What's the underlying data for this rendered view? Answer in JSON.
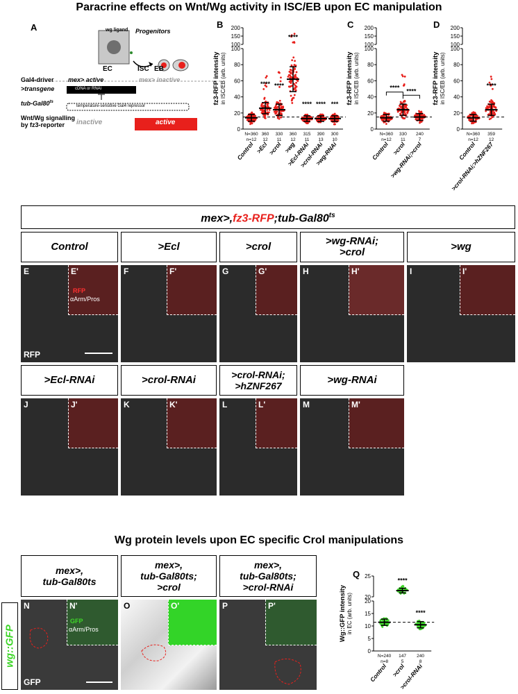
{
  "title_top": "Paracrine effects on Wnt/Wg activity in ISC/EB upon EC manipulation",
  "title_mid": "Wg protein levels upon EC specific Crol manipulations",
  "panel_letters": {
    "A": "A",
    "B": "B",
    "C": "C",
    "D": "D",
    "Q": "Q"
  },
  "schematic": {
    "wg_ligand": "wg ligand",
    "progenitors": "Progenitors",
    "ec": "EC",
    "isc": "ISC",
    "eb": "EB",
    "gal4_driver": "Gal4-driver",
    "mex_active": "mex> active",
    "mex_inactive": "mex> inactive",
    "transgene": ">transgene",
    "cdna_rnai": "cDNA or RNAi",
    "tub_gal80": "tub-Gal80",
    "tub_gal80_sup": "ts",
    "repressor": "temperature-sensitive Gal4 repressor",
    "wnt_line1": "Wnt/Wg signalling",
    "wnt_line2": "by fz3-reporter",
    "inactive": "inactive",
    "active": "active"
  },
  "genotype_header": {
    "p1": "mex>,",
    "p2": "fz3-RFP",
    "p3": ";tub-Gal80",
    "sup": "ts"
  },
  "microscopy_row1": [
    {
      "label": "Control",
      "letter": "E",
      "inset": "E'"
    },
    {
      "label": ">Ecl",
      "letter": "F",
      "inset": "F'"
    },
    {
      "label": ">crol",
      "letter": "G",
      "inset": "G'"
    },
    {
      "label": ">wg-RNAi;\n>crol",
      "letter": "H",
      "inset": "H'"
    },
    {
      "label": ">wg",
      "letter": "I",
      "inset": "I'"
    }
  ],
  "microscopy_row2": [
    {
      "label": ">Ecl-RNAi",
      "letter": "J",
      "inset": "J'"
    },
    {
      "label": ">crol-RNAi",
      "letter": "K",
      "inset": "K'"
    },
    {
      "label": ">crol-RNAi;\n>hZNF267",
      "letter": "L",
      "inset": "L'"
    },
    {
      "label": ">wg-RNAi",
      "letter": "M",
      "inset": "M'"
    }
  ],
  "inset_labels_E": {
    "rfp": "RFP",
    "arm": "αArm/Pros"
  },
  "channel_row1": "RFP",
  "microscopy_row3": [
    {
      "label": "mex>,\ntub-Gal80ts",
      "letter": "N",
      "inset": "N'"
    },
    {
      "label": "mex>,\ntub-Gal80ts;\n>crol",
      "letter": "O",
      "inset": "O'"
    },
    {
      "label": "mex>,\ntub-Gal80ts;\n>crol-RNAi",
      "letter": "P",
      "inset": "P'"
    }
  ],
  "inset_labels_N": {
    "gfp": "GFP",
    "arm": "αArm/Pros"
  },
  "channel_row3": "GFP",
  "side_label": "wg::GFP",
  "colors": {
    "red_points": "#e8201c",
    "green_points": "#3fd62a",
    "active_box": "#e8201c"
  },
  "chart_data": [
    {
      "panel": "B",
      "type": "scatter",
      "ylabel": "fz3-RFP intensity",
      "ylabel2": "in ISC/EB (arb. units)",
      "y_lower_ticks": [
        0,
        20,
        40,
        60,
        80,
        100
      ],
      "y_upper_ticks": [
        100,
        150,
        200
      ],
      "categories": [
        "Control",
        ">Ecl",
        ">crol",
        ">wg",
        ">Ecl-RNAi",
        ">crol-RNAi",
        ">wg-RNAi"
      ],
      "N": [
        "360",
        "360",
        "330",
        "360",
        "315",
        "390",
        "300"
      ],
      "n": [
        "12",
        "12",
        "11",
        "12",
        "11",
        "13",
        "10"
      ],
      "N_prefix": "N=",
      "n_prefix": "n=",
      "median": [
        14,
        26,
        24,
        62,
        13,
        13,
        13
      ],
      "spread": [
        6,
        10,
        10,
        22,
        5,
        5,
        5
      ],
      "significance": [
        "",
        "****",
        "****",
        "****",
        "****",
        "****",
        "***"
      ],
      "control_line": 15
    },
    {
      "panel": "C",
      "type": "scatter",
      "ylabel": "fz3-RFP intensity",
      "ylabel2": "in ISC/EB (arb. units)",
      "y_lower_ticks": [
        0,
        20,
        40,
        60,
        80,
        100
      ],
      "y_upper_ticks": [
        100,
        150,
        200
      ],
      "categories": [
        "Control",
        ">crol",
        ">wg-RNAi;>crol"
      ],
      "N": [
        "360",
        "330",
        "240"
      ],
      "n": [
        "12",
        "11",
        "7"
      ],
      "N_prefix": "N=",
      "n_prefix": "n=",
      "median": [
        14,
        24,
        15
      ],
      "spread": [
        6,
        10,
        6
      ],
      "brackets": [
        {
          "from": 0,
          "to": 1,
          "label": "****"
        },
        {
          "from": 1,
          "to": 2,
          "label": "****"
        }
      ],
      "control_line": 15
    },
    {
      "panel": "D",
      "type": "scatter",
      "ylabel": "fz3-RFP intensity",
      "ylabel2": "in ISC/EB (arb. units)",
      "y_lower_ticks": [
        0,
        20,
        40,
        60,
        80,
        100
      ],
      "y_upper_ticks": [
        100,
        150,
        200
      ],
      "categories": [
        "Control",
        ">crol-RNAi;>hZNF267"
      ],
      "N": [
        "360",
        "359"
      ],
      "n": [
        "12",
        "12"
      ],
      "N_prefix": "N=",
      "n_prefix": "n=",
      "median": [
        14,
        24
      ],
      "spread": [
        6,
        10
      ],
      "significance": [
        "",
        "****"
      ],
      "control_line": 15
    },
    {
      "panel": "Q",
      "type": "scatter",
      "ylabel": "Wg::GFP intensity",
      "ylabel2": "in EC (arb. units)",
      "y_lower_ticks": [
        0,
        5,
        10,
        15,
        20
      ],
      "y_upper_ticks": [
        20,
        25
      ],
      "categories": [
        "Control",
        ">crol",
        ">crol-RNAi"
      ],
      "N": [
        "240",
        "147",
        "240"
      ],
      "n": [
        "8",
        "5",
        "8"
      ],
      "N_prefix": "N=",
      "n_prefix": "n=",
      "median": [
        11.5,
        21.5,
        10.5
      ],
      "spread": [
        1.8,
        0.8,
        1.8
      ],
      "significance": [
        "",
        "****",
        "****"
      ],
      "control_line": 11.5
    }
  ]
}
